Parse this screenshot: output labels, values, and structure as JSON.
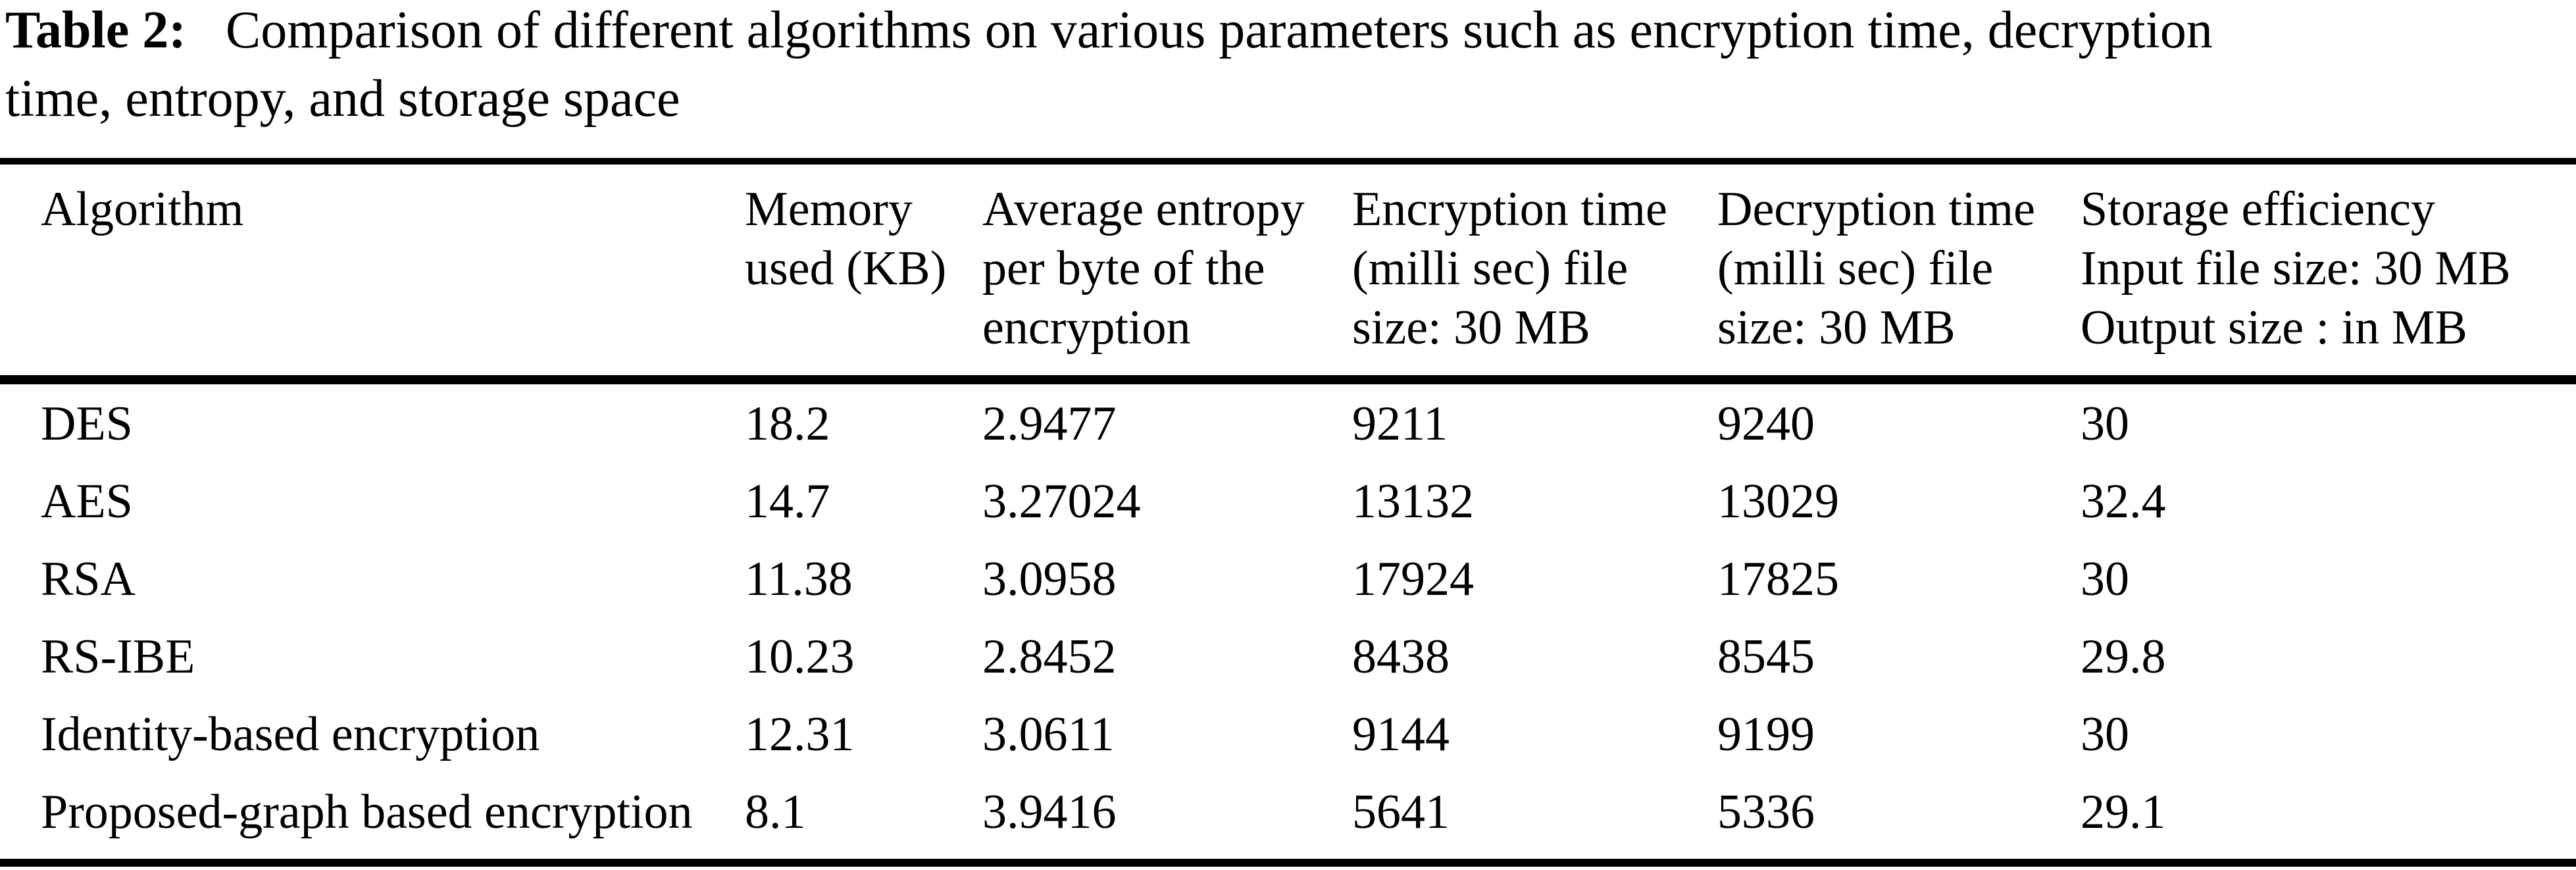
{
  "caption": {
    "label": "Table 2:",
    "line1": "Comparison of different algorithms on various parameters such as encryption time, decryption",
    "line2": "time, entropy, and storage space"
  },
  "table": {
    "columns": [
      {
        "id": "algorithm",
        "lines": [
          "Algorithm"
        ]
      },
      {
        "id": "memory",
        "lines": [
          "Memory",
          "used (KB)"
        ]
      },
      {
        "id": "entropy",
        "lines": [
          "Average entropy",
          "per byte of the",
          "encryption"
        ]
      },
      {
        "id": "enc_time",
        "lines": [
          "Encryption time",
          "(milli sec) file",
          "size: 30 MB"
        ]
      },
      {
        "id": "dec_time",
        "lines": [
          "Decryption time",
          "(milli sec) file",
          "size: 30 MB"
        ]
      },
      {
        "id": "storage",
        "lines": [
          "Storage efficiency",
          "Input file size: 30 MB",
          "Output size : in MB"
        ]
      }
    ],
    "rows": [
      {
        "algorithm": "DES",
        "memory": "18.2",
        "entropy": "2.9477",
        "enc_time": "9211",
        "dec_time": "9240",
        "storage": "30"
      },
      {
        "algorithm": "AES",
        "memory": "14.7",
        "entropy": "3.27024",
        "enc_time": "13132",
        "dec_time": "13029",
        "storage": "32.4"
      },
      {
        "algorithm": "RSA",
        "memory": "11.38",
        "entropy": "3.0958",
        "enc_time": "17924",
        "dec_time": "17825",
        "storage": "30"
      },
      {
        "algorithm": "RS-IBE",
        "memory": "10.23",
        "entropy": "2.8452",
        "enc_time": "8438",
        "dec_time": "8545",
        "storage": "29.8"
      },
      {
        "algorithm": "Identity-based encryption",
        "memory": "12.31",
        "entropy": "3.0611",
        "enc_time": "9144",
        "dec_time": "9199",
        "storage": "30"
      },
      {
        "algorithm": "Proposed-graph based encryption",
        "memory": "8.1",
        "entropy": "3.9416",
        "enc_time": "5641",
        "dec_time": "5336",
        "storage": "29.1"
      }
    ]
  },
  "chart_data": {
    "type": "table",
    "title": "Table 2: Comparison of different algorithms on various parameters such as encryption time, decryption time, entropy, and storage space",
    "columns": [
      "Algorithm",
      "Memory used (KB)",
      "Average entropy per byte of the encryption",
      "Encryption time (milli sec) file size: 30 MB",
      "Decryption time (milli sec) file size: 30 MB",
      "Storage efficiency Input file size: 30 MB Output size : in MB"
    ],
    "rows": [
      [
        "DES",
        18.2,
        2.9477,
        9211,
        9240,
        30
      ],
      [
        "AES",
        14.7,
        3.27024,
        13132,
        13029,
        32.4
      ],
      [
        "RSA",
        11.38,
        3.0958,
        17924,
        17825,
        30
      ],
      [
        "RS-IBE",
        10.23,
        2.8452,
        8438,
        8545,
        29.8
      ],
      [
        "Identity-based encryption",
        12.31,
        3.0611,
        9144,
        9199,
        30
      ],
      [
        "Proposed-graph based encryption",
        8.1,
        3.9416,
        5641,
        5336,
        29.1
      ]
    ]
  }
}
